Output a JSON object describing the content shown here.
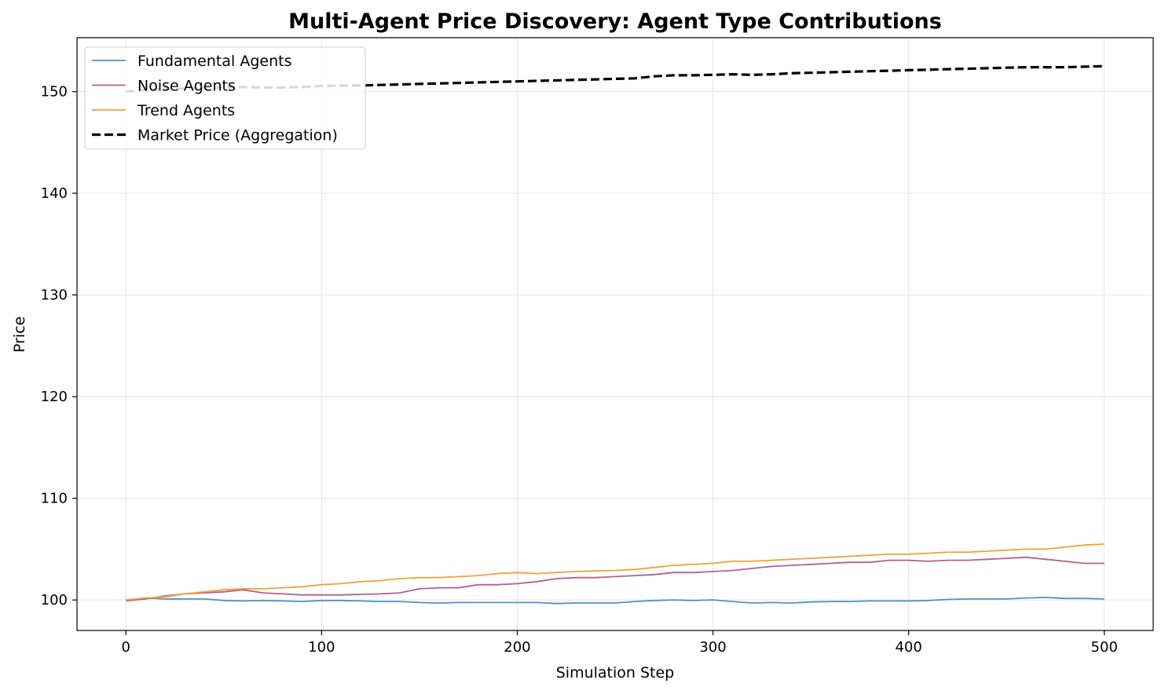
{
  "chart_data": {
    "type": "line",
    "title": "Multi-Agent Price Discovery: Agent Type Contributions",
    "xlabel": "Simulation Step",
    "ylabel": "Price",
    "xlim": [
      -25,
      525
    ],
    "ylim": [
      97,
      155.3
    ],
    "xticks": [
      0,
      100,
      200,
      300,
      400,
      500
    ],
    "yticks": [
      100,
      110,
      120,
      130,
      140,
      150
    ],
    "xtick_labels": [
      "0",
      "100",
      "200",
      "300",
      "400",
      "500"
    ],
    "ytick_labels": [
      "100",
      "110",
      "120",
      "130",
      "140",
      "150"
    ],
    "grid": true,
    "legend_position": "top-left",
    "series": [
      {
        "name": "Fundamental Agents",
        "color": "#4f93b8",
        "style": "solid",
        "x": [
          0,
          10,
          20,
          30,
          40,
          50,
          60,
          70,
          80,
          90,
          100,
          110,
          120,
          130,
          140,
          150,
          160,
          170,
          180,
          190,
          200,
          210,
          220,
          230,
          240,
          250,
          260,
          270,
          280,
          290,
          300,
          310,
          320,
          330,
          340,
          350,
          360,
          370,
          380,
          390,
          400,
          410,
          420,
          430,
          440,
          450,
          460,
          470,
          480,
          490,
          500
        ],
        "values": [
          100.0,
          100.2,
          100.1,
          100.1,
          100.1,
          99.95,
          99.9,
          99.95,
          99.9,
          99.85,
          99.95,
          99.95,
          99.9,
          99.85,
          99.85,
          99.75,
          99.7,
          99.75,
          99.75,
          99.75,
          99.75,
          99.75,
          99.65,
          99.7,
          99.7,
          99.7,
          99.85,
          99.95,
          100.0,
          99.95,
          100.0,
          99.85,
          99.7,
          99.75,
          99.7,
          99.8,
          99.85,
          99.85,
          99.9,
          99.9,
          99.9,
          99.95,
          100.05,
          100.1,
          100.1,
          100.1,
          100.2,
          100.25,
          100.15,
          100.15,
          100.1
        ]
      },
      {
        "name": "Noise Agents",
        "color": "#b0608f",
        "style": "solid",
        "x": [
          0,
          10,
          20,
          30,
          40,
          50,
          60,
          70,
          80,
          90,
          100,
          110,
          120,
          130,
          140,
          150,
          160,
          170,
          180,
          190,
          200,
          210,
          220,
          230,
          240,
          250,
          260,
          270,
          280,
          290,
          300,
          310,
          320,
          330,
          340,
          350,
          360,
          370,
          380,
          390,
          400,
          410,
          420,
          430,
          440,
          450,
          460,
          470,
          480,
          490,
          500
        ],
        "values": [
          99.9,
          100.1,
          100.4,
          100.6,
          100.7,
          100.8,
          101.0,
          100.7,
          100.6,
          100.5,
          100.5,
          100.5,
          100.55,
          100.6,
          100.7,
          101.1,
          101.2,
          101.2,
          101.5,
          101.5,
          101.6,
          101.8,
          102.1,
          102.2,
          102.2,
          102.3,
          102.4,
          102.5,
          102.7,
          102.7,
          102.8,
          102.9,
          103.1,
          103.3,
          103.4,
          103.5,
          103.6,
          103.7,
          103.7,
          103.9,
          103.9,
          103.8,
          103.9,
          103.9,
          104.0,
          104.1,
          104.2,
          104.0,
          103.8,
          103.6,
          103.6
        ]
      },
      {
        "name": "Trend Agents",
        "color": "#f0a23a",
        "style": "solid",
        "x": [
          0,
          10,
          20,
          30,
          40,
          50,
          60,
          70,
          80,
          90,
          100,
          110,
          120,
          130,
          140,
          150,
          160,
          170,
          180,
          190,
          200,
          210,
          220,
          230,
          240,
          250,
          260,
          270,
          280,
          290,
          300,
          310,
          320,
          330,
          340,
          350,
          360,
          370,
          380,
          390,
          400,
          410,
          420,
          430,
          440,
          450,
          460,
          470,
          480,
          490,
          500
        ],
        "values": [
          100.0,
          100.2,
          100.3,
          100.6,
          100.8,
          101.0,
          101.1,
          101.1,
          101.2,
          101.3,
          101.5,
          101.6,
          101.8,
          101.9,
          102.1,
          102.2,
          102.2,
          102.3,
          102.4,
          102.6,
          102.7,
          102.6,
          102.7,
          102.8,
          102.85,
          102.9,
          103.0,
          103.2,
          103.4,
          103.5,
          103.6,
          103.8,
          103.8,
          103.9,
          104.0,
          104.1,
          104.2,
          104.3,
          104.4,
          104.5,
          104.5,
          104.6,
          104.7,
          104.7,
          104.8,
          104.9,
          105.0,
          105.0,
          105.2,
          105.4,
          105.5
        ]
      },
      {
        "name": "Market Price (Aggregation)",
        "color": "#000000",
        "style": "dashed",
        "x": [
          0,
          10,
          20,
          30,
          40,
          50,
          60,
          70,
          80,
          90,
          100,
          110,
          120,
          130,
          140,
          150,
          160,
          170,
          180,
          190,
          200,
          210,
          220,
          230,
          240,
          250,
          260,
          270,
          280,
          290,
          300,
          310,
          320,
          330,
          340,
          350,
          360,
          370,
          380,
          390,
          400,
          410,
          420,
          430,
          440,
          450,
          460,
          470,
          480,
          490,
          500
        ],
        "values": [
          150.0,
          150.15,
          150.25,
          150.3,
          150.35,
          150.4,
          150.45,
          150.4,
          150.4,
          150.45,
          150.55,
          150.6,
          150.6,
          150.65,
          150.7,
          150.75,
          150.8,
          150.85,
          150.9,
          150.95,
          151.0,
          151.05,
          151.1,
          151.15,
          151.2,
          151.25,
          151.3,
          151.5,
          151.6,
          151.6,
          151.65,
          151.7,
          151.65,
          151.7,
          151.8,
          151.85,
          151.9,
          151.95,
          152.0,
          152.05,
          152.1,
          152.15,
          152.2,
          152.25,
          152.3,
          152.35,
          152.4,
          152.4,
          152.4,
          152.45,
          152.5
        ]
      }
    ]
  }
}
